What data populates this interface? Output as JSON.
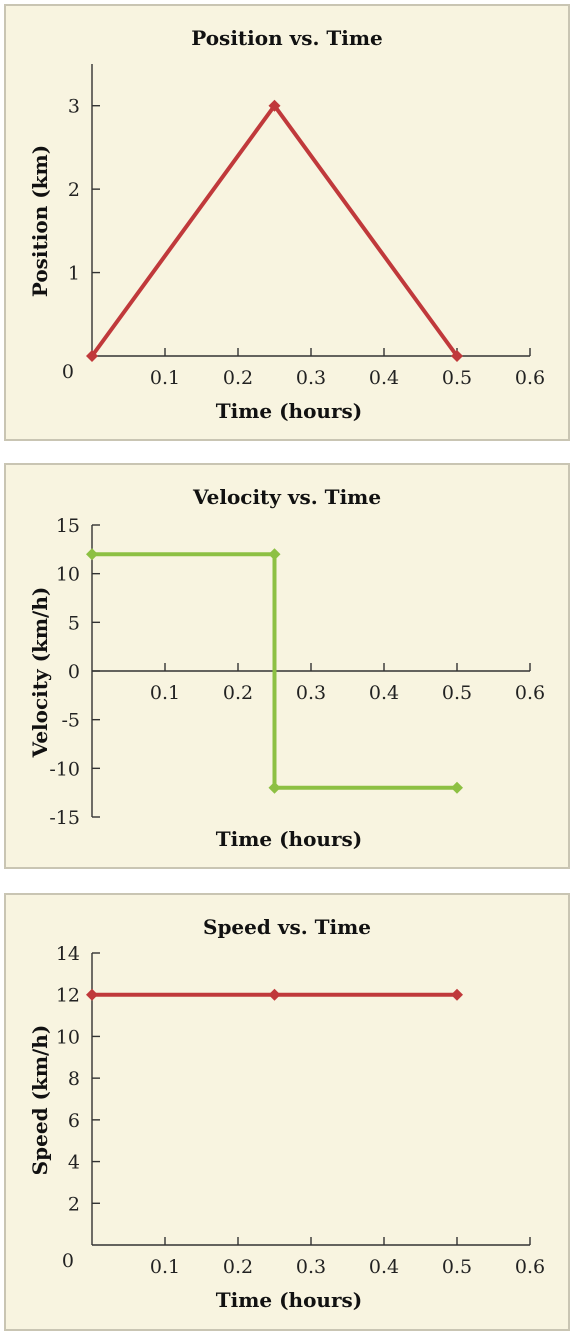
{
  "chart_data": [
    {
      "type": "line",
      "title": "Position vs. Time",
      "xlabel": "Time (hours)",
      "ylabel": "Position (km)",
      "xlim": [
        0,
        0.6
      ],
      "ylim": [
        0,
        3.5
      ],
      "x_ticks": [
        0.1,
        0.2,
        0.3,
        0.4,
        0.5,
        0.6
      ],
      "x_tick_labels": [
        "0.1",
        "0.2",
        "0.3",
        "0.4",
        "0.5",
        "0.6"
      ],
      "y_ticks": [
        0,
        1,
        2,
        3
      ],
      "y_tick_labels": [
        "0",
        "1",
        "2",
        "3"
      ],
      "color": "#c0393b",
      "series": [
        {
          "x": [
            0,
            0.25,
            0.5
          ],
          "y": [
            0,
            3,
            0
          ]
        }
      ],
      "grid": false
    },
    {
      "type": "line",
      "title": "Velocity vs. Time",
      "xlabel": "Time (hours)",
      "ylabel": "Velocity (km/h)",
      "xlim": [
        0,
        0.6
      ],
      "ylim": [
        -15,
        15
      ],
      "x_ticks": [
        0.1,
        0.2,
        0.3,
        0.4,
        0.5,
        0.6
      ],
      "x_tick_labels": [
        "0.1",
        "0.2",
        "0.3",
        "0.4",
        "0.5",
        "0.6"
      ],
      "y_ticks": [
        15,
        10,
        5,
        0,
        -5,
        -10,
        -15
      ],
      "y_tick_labels": [
        "15",
        "10",
        "5",
        "0",
        "-5",
        "-10",
        "-15"
      ],
      "color": "#8dc043",
      "series": [
        {
          "x": [
            0,
            0.25,
            0.25,
            0.5
          ],
          "y": [
            12,
            12,
            -12,
            -12
          ]
        }
      ],
      "grid": false
    },
    {
      "type": "line",
      "title": "Speed vs. Time",
      "xlabel": "Time (hours)",
      "ylabel": "Speed (km/h)",
      "xlim": [
        0,
        0.6
      ],
      "ylim": [
        0,
        14
      ],
      "x_ticks": [
        0.1,
        0.2,
        0.3,
        0.4,
        0.5,
        0.6
      ],
      "x_tick_labels": [
        "0.1",
        "0.2",
        "0.3",
        "0.4",
        "0.5",
        "0.6"
      ],
      "y_ticks": [
        0,
        2,
        4,
        6,
        8,
        10,
        12,
        14
      ],
      "y_tick_labels": [
        "0",
        "2",
        "4",
        "6",
        "8",
        "10",
        "12",
        "14"
      ],
      "color": "#c0393b",
      "series": [
        {
          "x": [
            0,
            0.25,
            0.5
          ],
          "y": [
            12,
            12,
            12
          ]
        }
      ],
      "grid": false
    }
  ]
}
